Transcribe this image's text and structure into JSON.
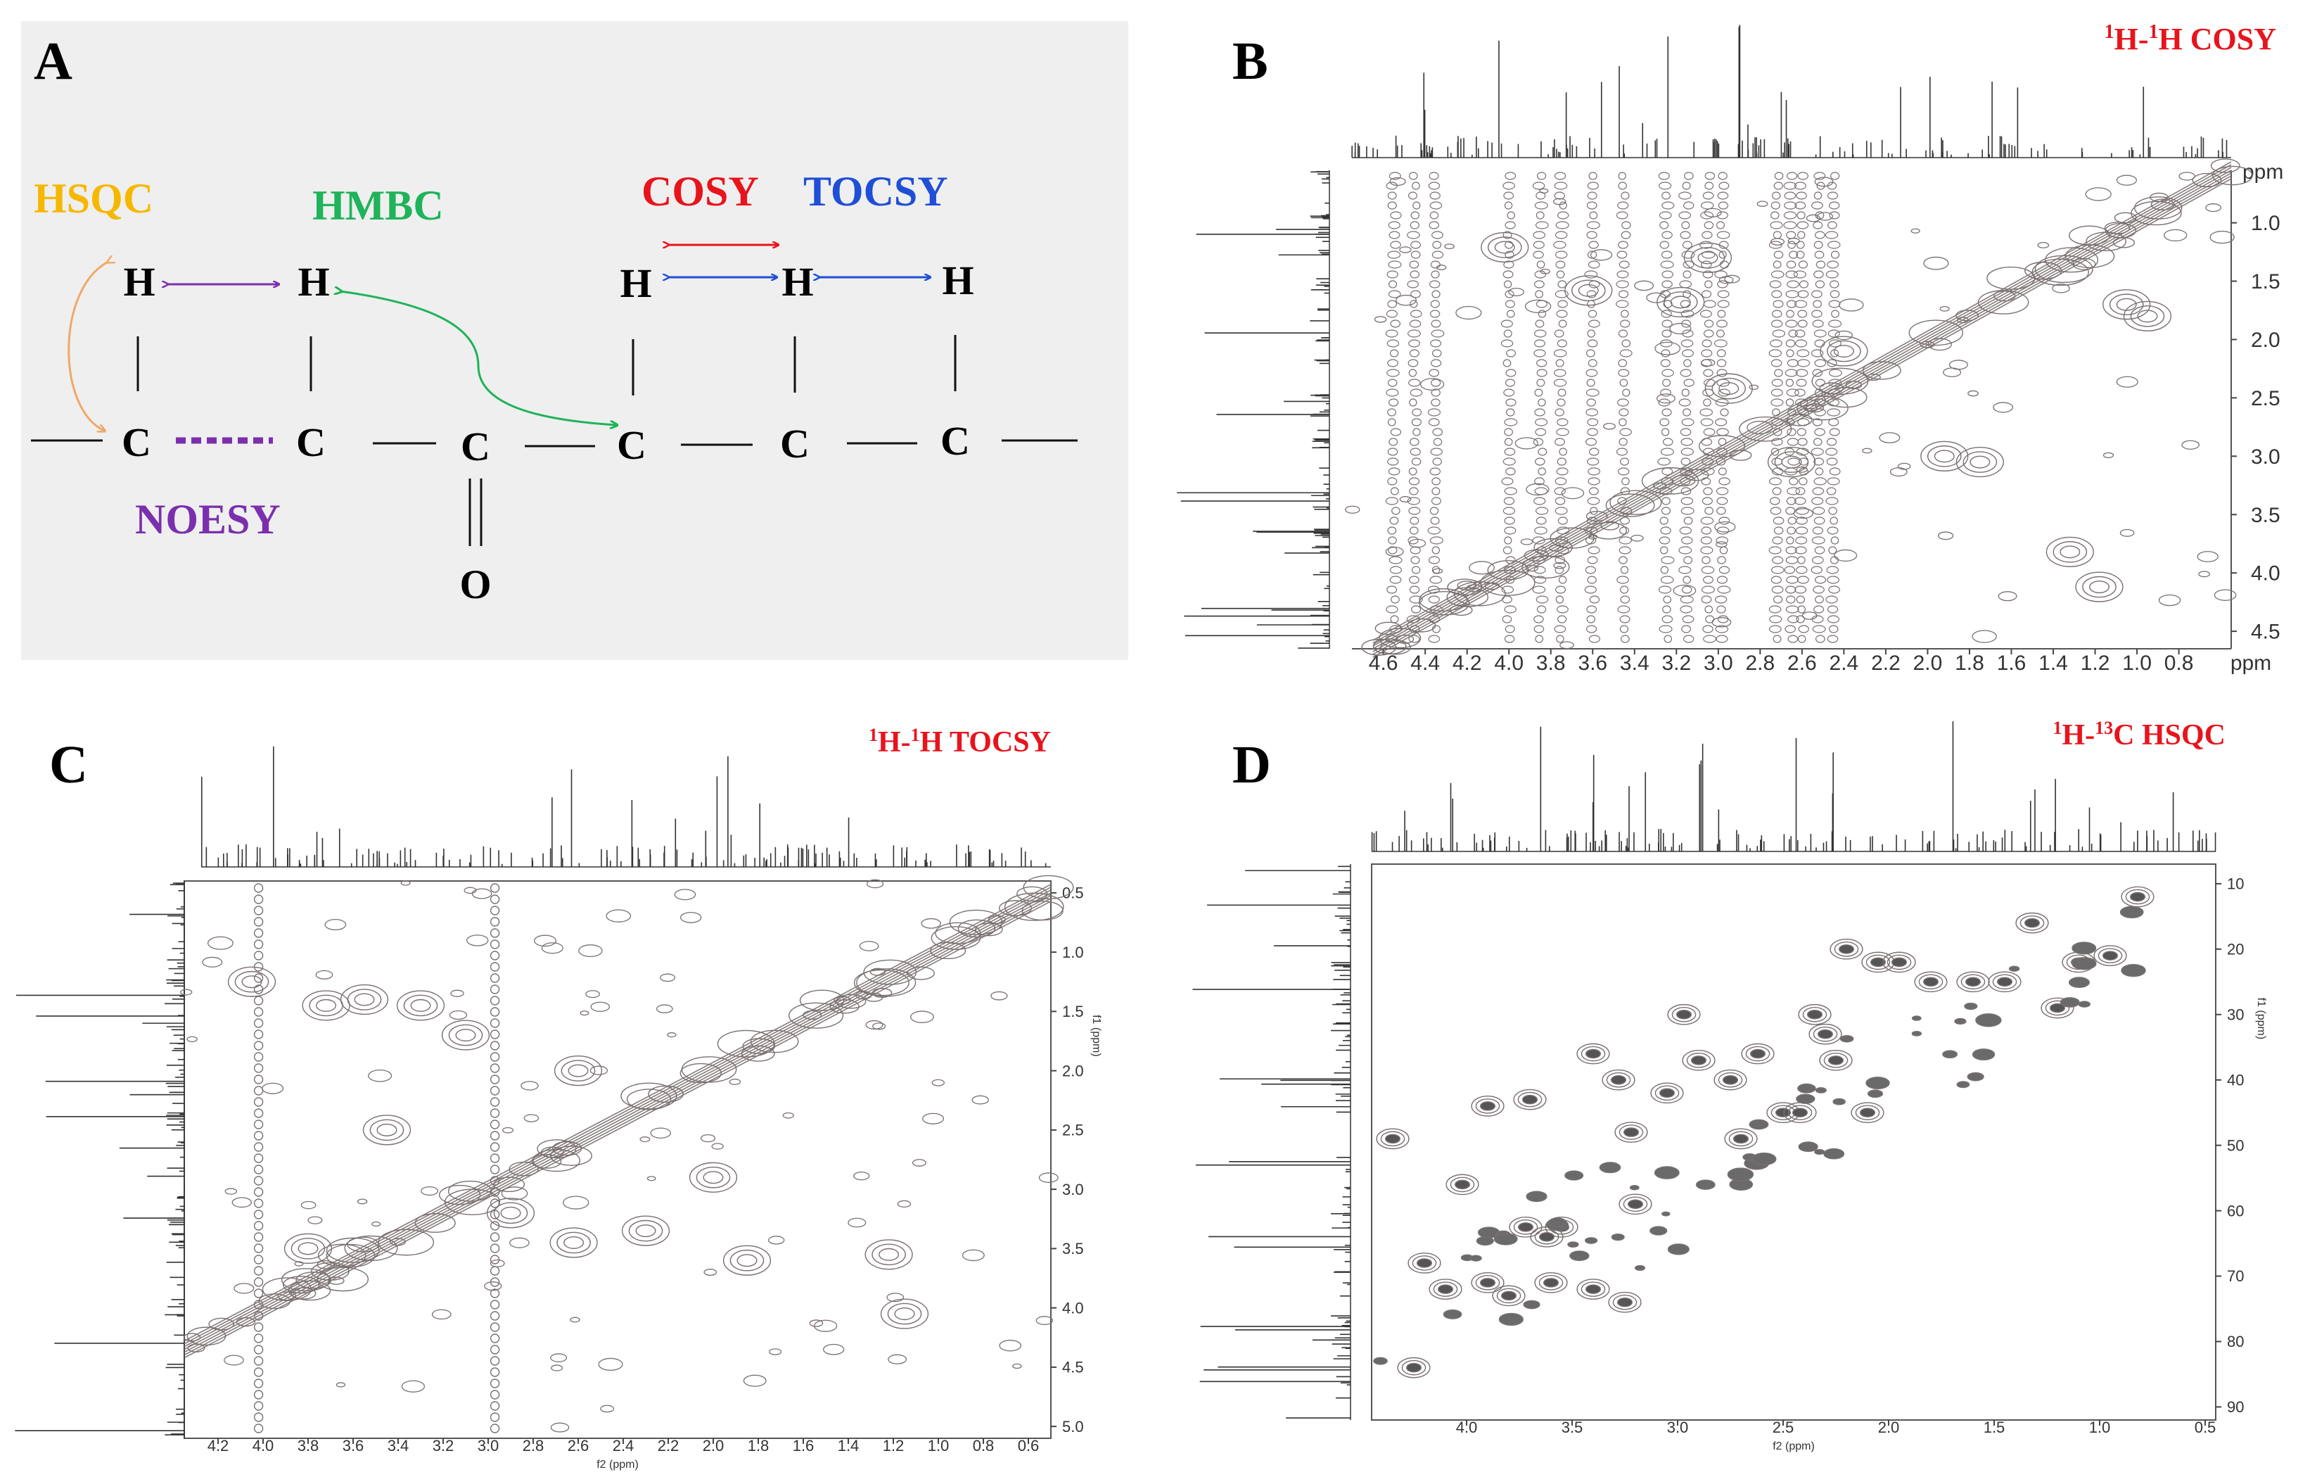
{
  "figure": {
    "panels": {
      "A": {
        "letter": "A"
      },
      "B": {
        "letter": "B",
        "title_sup1": "1",
        "title_mid": "H-",
        "title_sup2": "1",
        "title_rest": "H COSY"
      },
      "C": {
        "letter": "C",
        "title_sup1": "1",
        "title_mid": "H-",
        "title_sup2": "1",
        "title_rest": "H TOCSY"
      },
      "D": {
        "letter": "D",
        "title_sup1": "1",
        "title_mid": "H-",
        "title_sup2": "13",
        "title_rest": "C HSQC"
      }
    },
    "legend": {
      "hsqc": {
        "label": "HSQC",
        "color": "#f5b800"
      },
      "hmbc": {
        "label": "HMBC",
        "color": "#1fb35a"
      },
      "cosy": {
        "label": "COSY",
        "color": "#e8141c"
      },
      "tocsy": {
        "label": "TOCSY",
        "color": "#1f4fd6"
      },
      "noesy": {
        "label": "NOESY",
        "color": "#7b2fae"
      }
    },
    "atoms": {
      "h": "H",
      "c": "C",
      "o": "O"
    },
    "colors": {
      "panel_bg": "#efefef",
      "contour": "#7a7070",
      "spectrum": "#2b2b2b",
      "title_red": "#e8141c"
    }
  },
  "chart_data": [
    {
      "type": "heatmap",
      "panel": "B",
      "title": "1H-1H COSY",
      "xlabel": "ppm",
      "ylabel": "ppm",
      "x_ticks": [
        "4.6",
        "4.4",
        "4.2",
        "4.0",
        "3.8",
        "3.6",
        "3.4",
        "3.2",
        "3.0",
        "2.8",
        "2.6",
        "2.4",
        "2.2",
        "2.0",
        "1.8",
        "1.6",
        "1.4",
        "1.2",
        "1.0",
        "0.8"
      ],
      "y_ticks": [
        "1.0",
        "1.5",
        "2.0",
        "2.5",
        "3.0",
        "3.5",
        "4.0",
        "4.5"
      ],
      "xlim": [
        4.75,
        0.55
      ],
      "ylim": [
        0.55,
        4.65
      ],
      "cross_peaks": [
        [
          4.02,
          1.21
        ],
        [
          3.62,
          1.58
        ],
        [
          3.05,
          1.3
        ],
        [
          2.95,
          2.42
        ],
        [
          2.65,
          3.05
        ],
        [
          1.32,
          3.82
        ],
        [
          1.18,
          4.12
        ],
        [
          1.05,
          1.7
        ],
        [
          0.95,
          1.8
        ],
        [
          1.92,
          3.0
        ],
        [
          1.75,
          3.05
        ],
        [
          2.4,
          2.1
        ],
        [
          3.18,
          1.68
        ]
      ]
    },
    {
      "type": "heatmap",
      "panel": "C",
      "title": "1H-1H TOCSY",
      "xlabel": "f2 (ppm)",
      "ylabel": "f1 (ppm)",
      "x_ticks": [
        "4.2",
        "4.0",
        "3.8",
        "3.6",
        "3.4",
        "3.2",
        "3.0",
        "2.8",
        "2.6",
        "2.4",
        "2.2",
        "2.0",
        "1.8",
        "1.6",
        "1.4",
        "1.2",
        "1.0",
        "0.8",
        "0.6"
      ],
      "y_ticks": [
        "0.5",
        "1.0",
        "1.5",
        "2.0",
        "2.5",
        "3.0",
        "3.5",
        "4.0",
        "4.5",
        "5.0"
      ],
      "xlim": [
        4.35,
        0.5
      ],
      "ylim": [
        0.4,
        5.1
      ],
      "cross_peaks": [
        [
          4.05,
          1.25
        ],
        [
          3.72,
          1.45
        ],
        [
          3.55,
          1.4
        ],
        [
          3.3,
          1.45
        ],
        [
          3.1,
          1.7
        ],
        [
          2.6,
          2.0
        ],
        [
          2.62,
          3.45
        ],
        [
          2.3,
          3.35
        ],
        [
          1.85,
          3.6
        ],
        [
          1.22,
          3.55
        ],
        [
          1.15,
          4.05
        ],
        [
          3.45,
          2.5
        ],
        [
          2.9,
          3.2
        ],
        [
          2.0,
          2.9
        ],
        [
          3.8,
          3.5
        ]
      ]
    },
    {
      "type": "heatmap",
      "panel": "D",
      "title": "1H-13C HSQC",
      "xlabel": "f2 (ppm)",
      "ylabel": "f1 (ppm)",
      "x_ticks": [
        "4.0",
        "3.5",
        "3.0",
        "2.5",
        "2.0",
        "1.5",
        "1.0",
        "0.5"
      ],
      "y_ticks": [
        "10",
        "20",
        "30",
        "40",
        "50",
        "60",
        "70",
        "80",
        "90"
      ],
      "xlim": [
        4.45,
        0.45
      ],
      "ylim": [
        7,
        92
      ],
      "cross_peaks": [
        [
          4.02,
          56
        ],
        [
          3.72,
          62.5
        ],
        [
          3.55,
          62.5
        ],
        [
          3.62,
          64
        ],
        [
          3.4,
          36
        ],
        [
          3.28,
          40
        ],
        [
          3.22,
          48
        ],
        [
          3.2,
          59
        ],
        [
          2.97,
          30
        ],
        [
          2.9,
          37
        ],
        [
          2.7,
          49
        ],
        [
          2.62,
          36
        ],
        [
          2.5,
          45
        ],
        [
          2.42,
          45
        ],
        [
          2.35,
          30
        ],
        [
          2.3,
          33
        ],
        [
          2.25,
          37
        ],
        [
          2.2,
          20
        ],
        [
          2.05,
          22
        ],
        [
          1.95,
          22
        ],
        [
          1.8,
          25
        ],
        [
          1.6,
          25
        ],
        [
          1.45,
          25
        ],
        [
          1.2,
          29
        ],
        [
          1.1,
          22
        ],
        [
          0.95,
          21
        ],
        [
          0.82,
          12
        ],
        [
          1.32,
          16
        ],
        [
          3.9,
          44
        ],
        [
          3.7,
          43
        ],
        [
          4.1,
          72
        ],
        [
          3.9,
          71
        ],
        [
          3.6,
          71
        ],
        [
          3.8,
          73
        ],
        [
          3.4,
          72
        ],
        [
          3.25,
          74
        ],
        [
          4.2,
          68
        ],
        [
          4.25,
          84
        ],
        [
          4.35,
          49
        ],
        [
          2.1,
          45
        ],
        [
          2.75,
          40
        ],
        [
          3.05,
          42
        ]
      ]
    }
  ]
}
